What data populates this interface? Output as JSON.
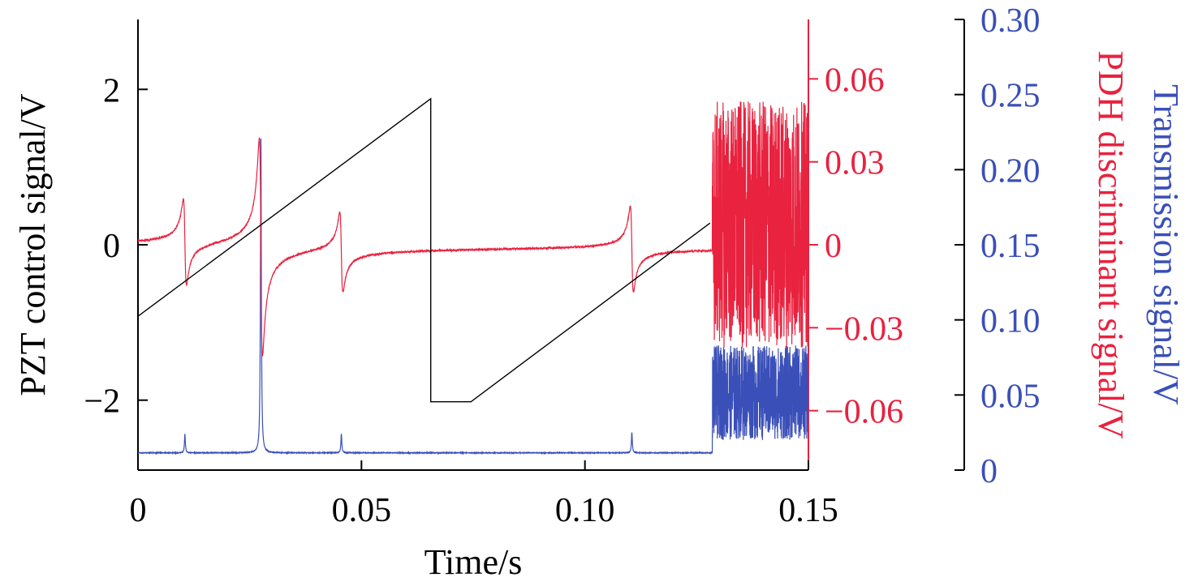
{
  "chart_data": {
    "type": "line",
    "xlabel": "Time/s",
    "ylabel_left": "PZT control signal/V",
    "ylabel_right_pdh": "PDH discriminant signal/V",
    "ylabel_right_trans": "Transmission signal/V",
    "xlim": [
      0,
      0.15
    ],
    "ylim_left": [
      -2.9,
      2.9
    ],
    "ylim_pdh": [
      -0.0815,
      0.0815
    ],
    "ylim_trans": [
      0,
      0.3
    ],
    "x_ticks": [
      {
        "value": 0,
        "label": "0"
      },
      {
        "value": 0.05,
        "label": "0.05"
      },
      {
        "value": 0.1,
        "label": "0.10"
      },
      {
        "value": 0.15,
        "label": "0.15"
      }
    ],
    "left_ticks": [
      {
        "value": 2,
        "label": "2"
      },
      {
        "value": 0,
        "label": "0"
      },
      {
        "value": -2,
        "label": "−2"
      }
    ],
    "pdh_ticks": [
      {
        "value": 0.06,
        "label": "0.06"
      },
      {
        "value": 0.03,
        "label": "0.03"
      },
      {
        "value": 0,
        "label": "0"
      },
      {
        "value": -0.03,
        "label": "−0.03"
      },
      {
        "value": -0.06,
        "label": "−0.06"
      }
    ],
    "trans_ticks": [
      {
        "value": 0.3,
        "label": "0.30"
      },
      {
        "value": 0.25,
        "label": "0.25"
      },
      {
        "value": 0.2,
        "label": "0.20"
      },
      {
        "value": 0.15,
        "label": "0.15"
      },
      {
        "value": 0.1,
        "label": "0.10"
      },
      {
        "value": 0.05,
        "label": "0.05"
      },
      {
        "value": 0,
        "label": "0"
      }
    ],
    "series": [
      {
        "color": "#000000",
        "axis": "left",
        "points": [
          [
            0,
            -0.92
          ],
          [
            0.0655,
            1.88
          ],
          [
            0.0655,
            -2.02
          ],
          [
            0.0745,
            -2.02
          ],
          [
            0.128,
            0.28
          ]
        ]
      },
      {
        "color": "#e8223f",
        "axis": "pdh",
        "baseline": -0.001,
        "resonances": [
          {
            "x": 0.0105,
            "amp": 0.0155
          },
          {
            "x": 0.0275,
            "amp": 0.0395
          },
          {
            "x": 0.0455,
            "amp": 0.0145
          },
          {
            "x": 0.1105,
            "amp": 0.0155
          }
        ],
        "noise_region": [
          0.1285,
          0.15
        ],
        "noise_range": [
          -0.0375,
          0.052
        ]
      },
      {
        "color": "#3a4fb8",
        "axis": "trans",
        "baseline": 0.0115,
        "peaks": [
          {
            "x": 0.0105,
            "height": 0.0125
          },
          {
            "x": 0.0275,
            "height": 0.2105
          },
          {
            "x": 0.0455,
            "height": 0.0125
          },
          {
            "x": 0.1105,
            "height": 0.0135
          }
        ],
        "noise_region": [
          0.1285,
          0.15
        ],
        "noise_range": [
          0.02,
          0.083
        ]
      }
    ],
    "grid": false
  },
  "colors": {
    "pzt": "#000000",
    "pdh": "#e8223f",
    "trans": "#3a4fb8"
  }
}
